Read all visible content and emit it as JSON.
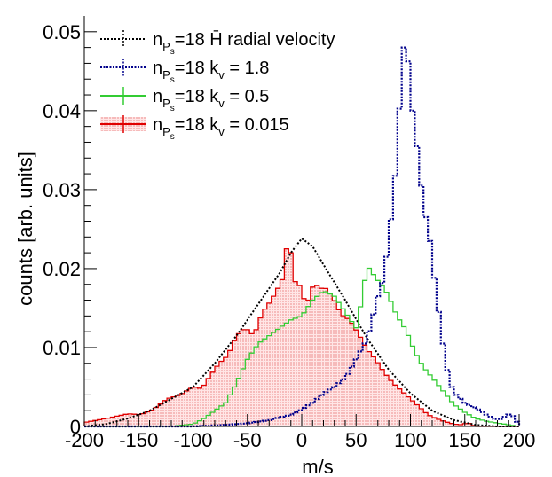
{
  "chart_data": {
    "type": "histogram",
    "title": "",
    "xlabel": "m/s",
    "ylabel": "counts [arb. units]",
    "xlim": [
      -200,
      200
    ],
    "ylim": [
      0,
      0.052
    ],
    "x_ticks": [
      -200,
      -150,
      -100,
      -50,
      0,
      50,
      100,
      150,
      200
    ],
    "x_tick_labels": [
      "-200",
      "-150",
      "-100",
      "-50",
      "0",
      "50",
      "100",
      "150",
      "200"
    ],
    "y_ticks": [
      0,
      0.01,
      0.02,
      0.03,
      0.04,
      0.05
    ],
    "y_tick_labels": [
      "0",
      "0.01",
      "0.02",
      "0.03",
      "0.04",
      "0.05"
    ],
    "grid": false,
    "legend_position": "top-left",
    "bin_width": 4,
    "series": [
      {
        "key": "radial",
        "name": "n_Ps=18  H̄ radial velocity",
        "legend_prefix": "n",
        "legend_sub": "P",
        "legend_subsub": "s",
        "legend_text": "=18  H̄ radial velocity",
        "color": "#000000",
        "style": "dotted-smooth",
        "points": [
          [
            -200,
            0.0
          ],
          [
            -180,
            0.0003
          ],
          [
            -160,
            0.001
          ],
          [
            -140,
            0.002
          ],
          [
            -120,
            0.0035
          ],
          [
            -100,
            0.005
          ],
          [
            -80,
            0.008
          ],
          [
            -60,
            0.0115
          ],
          [
            -40,
            0.0155
          ],
          [
            -20,
            0.0195
          ],
          [
            -10,
            0.022
          ],
          [
            0,
            0.0238
          ],
          [
            10,
            0.0228
          ],
          [
            20,
            0.0205
          ],
          [
            40,
            0.016
          ],
          [
            60,
            0.0112
          ],
          [
            80,
            0.0072
          ],
          [
            100,
            0.0042
          ],
          [
            120,
            0.002
          ],
          [
            140,
            0.0008
          ],
          [
            160,
            0.0002
          ],
          [
            180,
            0.0
          ],
          [
            200,
            0.0
          ]
        ]
      },
      {
        "key": "kv18",
        "name": "n_Ps=18  k_v = 1.8",
        "legend_prefix": "n",
        "legend_sub": "P",
        "legend_subsub": "s",
        "legend_text": "=18  k",
        "legend_ksub": "v",
        "legend_tail": " = 1.8",
        "color": "#00008b",
        "style": "dotted-step",
        "points": [
          [
            -200,
            0.0
          ],
          [
            -100,
            0.0
          ],
          [
            -70,
            0.0002
          ],
          [
            -50,
            0.0004
          ],
          [
            -30,
            0.0008
          ],
          [
            -10,
            0.0015
          ],
          [
            0,
            0.0022
          ],
          [
            10,
            0.003
          ],
          [
            20,
            0.0042
          ],
          [
            30,
            0.005
          ],
          [
            40,
            0.0062
          ],
          [
            50,
            0.0085
          ],
          [
            60,
            0.011
          ],
          [
            66,
            0.0142
          ],
          [
            70,
            0.0165
          ],
          [
            76,
            0.019
          ],
          [
            80,
            0.024
          ],
          [
            84,
            0.0285
          ],
          [
            88,
            0.035
          ],
          [
            92,
            0.0455
          ],
          [
            96,
            0.0505
          ],
          [
            100,
            0.042
          ],
          [
            104,
            0.038
          ],
          [
            108,
            0.033
          ],
          [
            112,
            0.028
          ],
          [
            118,
            0.0235
          ],
          [
            124,
            0.0165
          ],
          [
            130,
            0.0105
          ],
          [
            136,
            0.0055
          ],
          [
            142,
            0.004
          ],
          [
            150,
            0.003
          ],
          [
            160,
            0.0023
          ],
          [
            170,
            0.0015
          ],
          [
            180,
            0.0008
          ],
          [
            190,
            0.0015
          ],
          [
            196,
            0.0012
          ],
          [
            200,
            0.0
          ]
        ]
      },
      {
        "key": "kv05",
        "name": "n_Ps=18  k_v = 0.5",
        "legend_prefix": "n",
        "legend_sub": "P",
        "legend_subsub": "s",
        "legend_text": "=18 k",
        "legend_ksub": "v",
        "legend_tail": " = 0.5",
        "color": "#33cc33",
        "style": "step",
        "points": [
          [
            -200,
            0.0
          ],
          [
            -120,
            0.0
          ],
          [
            -100,
            0.0003
          ],
          [
            -90,
            0.001
          ],
          [
            -80,
            0.002
          ],
          [
            -70,
            0.003
          ],
          [
            -60,
            0.0055
          ],
          [
            -50,
            0.0085
          ],
          [
            -40,
            0.0105
          ],
          [
            -30,
            0.0115
          ],
          [
            -20,
            0.0125
          ],
          [
            -10,
            0.0135
          ],
          [
            0,
            0.014
          ],
          [
            10,
            0.016
          ],
          [
            20,
            0.0172
          ],
          [
            30,
            0.0165
          ],
          [
            40,
            0.0145
          ],
          [
            50,
            0.0125
          ],
          [
            56,
            0.0165
          ],
          [
            60,
            0.0205
          ],
          [
            64,
            0.0196
          ],
          [
            70,
            0.0185
          ],
          [
            76,
            0.0175
          ],
          [
            80,
            0.0165
          ],
          [
            86,
            0.0145
          ],
          [
            90,
            0.0135
          ],
          [
            96,
            0.0122
          ],
          [
            104,
            0.0095
          ],
          [
            112,
            0.0075
          ],
          [
            120,
            0.0062
          ],
          [
            130,
            0.0045
          ],
          [
            140,
            0.0028
          ],
          [
            150,
            0.0018
          ],
          [
            160,
            0.001
          ],
          [
            172,
            0.0006
          ],
          [
            200,
            0.0
          ]
        ]
      },
      {
        "key": "kv0015",
        "name": "n_Ps=18  k_v = 0.015",
        "legend_prefix": "n",
        "legend_sub": "P",
        "legend_subsub": "s",
        "legend_text": "=18  k",
        "legend_ksub": "v",
        "legend_tail": " = 0.015",
        "color": "#e00000",
        "fill": true,
        "style": "step-filled",
        "points": [
          [
            -200,
            0.0005
          ],
          [
            -180,
            0.001
          ],
          [
            -160,
            0.0016
          ],
          [
            -148,
            0.0015
          ],
          [
            -136,
            0.0022
          ],
          [
            -124,
            0.0035
          ],
          [
            -112,
            0.004
          ],
          [
            -100,
            0.005
          ],
          [
            -92,
            0.0048
          ],
          [
            -84,
            0.0065
          ],
          [
            -76,
            0.008
          ],
          [
            -68,
            0.009
          ],
          [
            -60,
            0.0115
          ],
          [
            -52,
            0.0125
          ],
          [
            -44,
            0.0115
          ],
          [
            -36,
            0.0145
          ],
          [
            -28,
            0.016
          ],
          [
            -20,
            0.018
          ],
          [
            -16,
            0.0192
          ],
          [
            -12,
            0.0258
          ],
          [
            -8,
            0.0182
          ],
          [
            -4,
            0.0185
          ],
          [
            0,
            0.0172
          ],
          [
            4,
            0.0152
          ],
          [
            8,
            0.0168
          ],
          [
            12,
            0.0185
          ],
          [
            16,
            0.0172
          ],
          [
            20,
            0.0178
          ],
          [
            28,
            0.0165
          ],
          [
            36,
            0.0142
          ],
          [
            44,
            0.0135
          ],
          [
            52,
            0.0118
          ],
          [
            60,
            0.0098
          ],
          [
            68,
            0.0085
          ],
          [
            76,
            0.0068
          ],
          [
            84,
            0.0055
          ],
          [
            92,
            0.0045
          ],
          [
            100,
            0.0035
          ],
          [
            108,
            0.0025
          ],
          [
            116,
            0.0015
          ],
          [
            124,
            0.001
          ],
          [
            132,
            0.0006
          ],
          [
            140,
            0.0003
          ],
          [
            148,
            0.0002
          ],
          [
            152,
            0.0005
          ],
          [
            160,
            0.0
          ],
          [
            200,
            0.0
          ]
        ]
      }
    ]
  }
}
